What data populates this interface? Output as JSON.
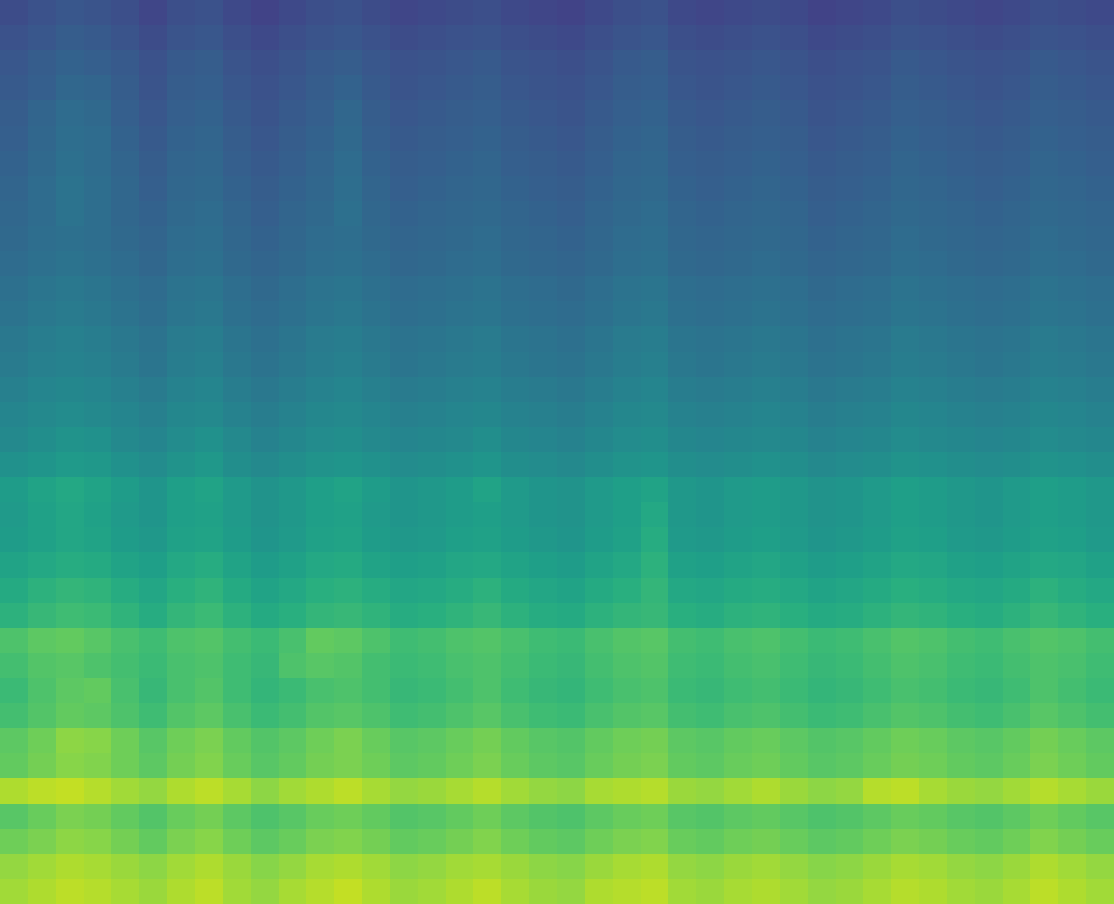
{
  "chart_data": {
    "type": "heatmap",
    "color": "Viridis",
    "tick_labels": false,
    "zlim": [
      0,
      100
    ],
    "cells": [
      [
        86,
        88,
        90,
        89,
        87,
        85,
        88,
        90,
        86,
        84,
        87,
        89,
        91,
        88,
        85,
        86,
        88,
        90,
        87,
        85,
        84,
        88,
        89,
        90,
        86,
        85,
        87,
        88,
        86,
        84,
        85,
        87,
        89,
        88,
        86,
        85,
        87,
        90,
        88,
        86
      ],
      [
        84,
        86,
        88,
        87,
        85,
        83,
        86,
        88,
        85,
        82,
        84,
        87,
        88,
        86,
        83,
        84,
        86,
        87,
        85,
        83,
        82,
        85,
        87,
        88,
        84,
        83,
        85,
        86,
        84,
        82,
        83,
        85,
        87,
        86,
        84,
        83,
        85,
        88,
        86,
        84
      ],
      [
        78,
        80,
        83,
        82,
        79,
        76,
        80,
        82,
        78,
        75,
        77,
        80,
        81,
        79,
        76,
        77,
        79,
        81,
        78,
        76,
        75,
        78,
        80,
        81,
        77,
        76,
        78,
        79,
        77,
        75,
        76,
        78,
        80,
        79,
        77,
        76,
        78,
        81,
        79,
        77
      ],
      [
        74,
        77,
        80,
        79,
        76,
        73,
        77,
        79,
        75,
        72,
        74,
        77,
        78,
        76,
        73,
        74,
        76,
        78,
        75,
        73,
        72,
        75,
        77,
        78,
        74,
        73,
        75,
        76,
        74,
        72,
        73,
        75,
        77,
        76,
        74,
        73,
        75,
        78,
        76,
        74
      ],
      [
        88,
        90,
        91,
        89,
        86,
        84,
        88,
        90,
        87,
        83,
        86,
        88,
        90,
        87,
        84,
        85,
        87,
        89,
        86,
        84,
        83,
        87,
        88,
        89,
        85,
        84,
        86,
        88,
        85,
        83,
        84,
        89,
        90,
        87,
        85,
        84,
        86,
        89,
        87,
        85
      ],
      [
        76,
        79,
        82,
        81,
        78,
        75,
        79,
        81,
        77,
        74,
        76,
        79,
        80,
        78,
        75,
        76,
        78,
        80,
        77,
        75,
        74,
        77,
        79,
        80,
        76,
        75,
        77,
        78,
        76,
        74,
        75,
        77,
        79,
        78,
        76,
        75,
        77,
        80,
        78,
        76
      ],
      [
        75,
        78,
        83,
        82,
        78,
        74,
        78,
        80,
        76,
        73,
        75,
        78,
        80,
        77,
        74,
        75,
        77,
        79,
        76,
        74,
        73,
        76,
        78,
        79,
        75,
        74,
        76,
        77,
        75,
        73,
        74,
        76,
        78,
        77,
        75,
        74,
        76,
        79,
        77,
        75
      ],
      [
        70,
        73,
        76,
        75,
        72,
        69,
        73,
        75,
        71,
        68,
        70,
        73,
        74,
        72,
        69,
        70,
        72,
        74,
        71,
        69,
        68,
        71,
        73,
        74,
        70,
        69,
        71,
        72,
        70,
        68,
        69,
        71,
        73,
        72,
        70,
        69,
        71,
        74,
        72,
        70
      ],
      [
        68,
        72,
        75,
        76,
        71,
        67,
        71,
        73,
        69,
        66,
        68,
        71,
        72,
        70,
        67,
        68,
        70,
        72,
        69,
        67,
        66,
        69,
        71,
        72,
        68,
        67,
        69,
        70,
        68,
        66,
        67,
        69,
        71,
        70,
        68,
        67,
        69,
        72,
        70,
        68
      ],
      [
        70,
        73,
        74,
        72,
        70,
        68,
        71,
        72,
        69,
        67,
        72,
        74,
        73,
        70,
        68,
        69,
        71,
        72,
        70,
        68,
        67,
        70,
        72,
        73,
        69,
        68,
        70,
        71,
        69,
        67,
        68,
        70,
        72,
        71,
        69,
        68,
        70,
        72,
        71,
        69
      ],
      [
        72,
        75,
        76,
        74,
        71,
        69,
        72,
        73,
        70,
        68,
        71,
        76,
        75,
        72,
        69,
        70,
        72,
        73,
        71,
        69,
        68,
        71,
        73,
        74,
        70,
        69,
        71,
        72,
        70,
        68,
        69,
        71,
        73,
        72,
        70,
        69,
        71,
        73,
        72,
        70
      ],
      [
        64,
        67,
        69,
        68,
        65,
        62,
        66,
        68,
        64,
        61,
        63,
        66,
        67,
        65,
        62,
        63,
        65,
        67,
        64,
        62,
        61,
        64,
        66,
        67,
        63,
        62,
        64,
        65,
        63,
        61,
        62,
        64,
        66,
        65,
        63,
        62,
        64,
        67,
        65,
        63
      ],
      [
        61,
        64,
        66,
        65,
        62,
        59,
        63,
        65,
        61,
        58,
        60,
        63,
        64,
        62,
        59,
        60,
        62,
        64,
        61,
        59,
        58,
        61,
        63,
        66,
        60,
        59,
        61,
        62,
        60,
        58,
        59,
        61,
        63,
        62,
        60,
        59,
        61,
        64,
        62,
        60
      ],
      [
        58,
        60,
        62,
        61,
        58,
        56,
        60,
        62,
        58,
        55,
        57,
        60,
        61,
        58,
        56,
        57,
        59,
        60,
        58,
        56,
        55,
        58,
        60,
        64,
        57,
        56,
        58,
        59,
        57,
        55,
        56,
        58,
        60,
        59,
        57,
        56,
        58,
        60,
        59,
        57
      ],
      [
        55,
        57,
        59,
        58,
        55,
        53,
        57,
        58,
        55,
        52,
        54,
        57,
        58,
        55,
        53,
        54,
        56,
        57,
        55,
        53,
        52,
        55,
        57,
        62,
        54,
        53,
        55,
        56,
        54,
        52,
        53,
        55,
        57,
        56,
        54,
        53,
        55,
        57,
        56,
        54
      ],
      [
        54,
        57,
        59,
        57,
        54,
        52,
        56,
        57,
        54,
        51,
        53,
        56,
        57,
        54,
        52,
        53,
        55,
        56,
        54,
        52,
        51,
        54,
        56,
        60,
        53,
        52,
        54,
        55,
        53,
        51,
        52,
        54,
        56,
        55,
        53,
        52,
        54,
        56,
        55,
        53
      ],
      [
        55,
        58,
        60,
        58,
        55,
        52,
        56,
        58,
        54,
        51,
        53,
        56,
        58,
        55,
        52,
        53,
        55,
        58,
        54,
        52,
        51,
        54,
        56,
        58,
        53,
        52,
        54,
        55,
        53,
        51,
        52,
        54,
        56,
        55,
        53,
        52,
        54,
        56,
        55,
        53
      ],
      [
        50,
        52,
        54,
        53,
        50,
        48,
        51,
        53,
        49,
        47,
        49,
        51,
        52,
        50,
        48,
        49,
        50,
        52,
        49,
        48,
        47,
        49,
        51,
        52,
        49,
        48,
        49,
        50,
        49,
        47,
        48,
        49,
        51,
        50,
        49,
        48,
        49,
        51,
        50,
        49
      ],
      [
        47,
        49,
        51,
        50,
        47,
        45,
        48,
        50,
        47,
        44,
        46,
        48,
        49,
        47,
        45,
        46,
        47,
        49,
        46,
        45,
        44,
        46,
        48,
        49,
        46,
        45,
        46,
        47,
        46,
        44,
        45,
        46,
        48,
        47,
        46,
        45,
        46,
        48,
        47,
        46
      ],
      [
        45,
        47,
        48,
        47,
        45,
        43,
        46,
        47,
        44,
        42,
        44,
        46,
        47,
        45,
        43,
        44,
        45,
        46,
        44,
        43,
        42,
        44,
        46,
        47,
        44,
        43,
        44,
        45,
        44,
        42,
        43,
        44,
        46,
        45,
        44,
        43,
        44,
        46,
        45,
        44
      ],
      [
        43,
        45,
        46,
        45,
        43,
        41,
        44,
        45,
        42,
        40,
        42,
        44,
        45,
        43,
        41,
        42,
        43,
        44,
        42,
        41,
        40,
        42,
        44,
        45,
        42,
        41,
        42,
        43,
        42,
        40,
        41,
        42,
        44,
        43,
        42,
        41,
        42,
        44,
        43,
        42
      ],
      [
        41,
        43,
        44,
        43,
        41,
        39,
        42,
        43,
        40,
        38,
        40,
        42,
        43,
        41,
        39,
        40,
        41,
        42,
        40,
        39,
        38,
        40,
        42,
        43,
        40,
        39,
        40,
        41,
        40,
        38,
        39,
        40,
        42,
        41,
        40,
        39,
        40,
        42,
        41,
        40
      ],
      [
        40,
        42,
        43,
        42,
        40,
        38,
        41,
        42,
        39,
        37,
        39,
        41,
        42,
        40,
        38,
        39,
        40,
        41,
        39,
        38,
        37,
        39,
        41,
        42,
        39,
        38,
        39,
        40,
        39,
        37,
        38,
        39,
        41,
        40,
        39,
        38,
        39,
        41,
        40,
        39
      ],
      [
        38,
        40,
        41,
        40,
        38,
        36,
        39,
        40,
        37,
        35,
        37,
        39,
        40,
        38,
        36,
        37,
        38,
        39,
        37,
        36,
        35,
        37,
        39,
        40,
        37,
        36,
        37,
        38,
        37,
        35,
        36,
        37,
        39,
        38,
        37,
        36,
        37,
        39,
        38,
        37
      ],
      [
        37,
        39,
        40,
        39,
        37,
        35,
        38,
        39,
        36,
        34,
        36,
        38,
        39,
        37,
        35,
        36,
        37,
        38,
        36,
        35,
        34,
        36,
        38,
        39,
        36,
        35,
        36,
        37,
        36,
        34,
        35,
        36,
        38,
        37,
        36,
        35,
        36,
        38,
        37,
        36
      ],
      [
        35,
        37,
        38,
        37,
        35,
        33,
        36,
        37,
        34,
        32,
        34,
        36,
        37,
        35,
        33,
        34,
        35,
        36,
        34,
        33,
        32,
        34,
        36,
        37,
        34,
        33,
        34,
        35,
        34,
        32,
        33,
        34,
        36,
        35,
        34,
        33,
        34,
        36,
        35,
        34
      ],
      [
        34,
        36,
        37,
        36,
        34,
        32,
        35,
        36,
        33,
        31,
        33,
        35,
        36,
        34,
        32,
        33,
        34,
        35,
        33,
        32,
        31,
        33,
        35,
        36,
        33,
        32,
        33,
        34,
        33,
        31,
        32,
        33,
        35,
        34,
        33,
        32,
        33,
        35,
        34,
        33
      ],
      [
        33,
        35,
        38,
        36,
        33,
        31,
        34,
        35,
        32,
        30,
        32,
        34,
        37,
        33,
        31,
        32,
        33,
        34,
        32,
        31,
        30,
        32,
        34,
        35,
        32,
        31,
        32,
        33,
        32,
        30,
        31,
        32,
        34,
        33,
        32,
        31,
        32,
        34,
        33,
        32
      ],
      [
        32,
        35,
        38,
        36,
        33,
        30,
        33,
        34,
        31,
        29,
        31,
        33,
        36,
        32,
        30,
        31,
        32,
        33,
        31,
        30,
        29,
        31,
        33,
        34,
        31,
        30,
        31,
        32,
        31,
        29,
        30,
        31,
        33,
        32,
        31,
        30,
        31,
        33,
        32,
        31
      ],
      [
        31,
        34,
        37,
        35,
        32,
        29,
        32,
        33,
        30,
        28,
        30,
        32,
        35,
        31,
        29,
        30,
        31,
        32,
        30,
        29,
        28,
        30,
        32,
        33,
        30,
        29,
        30,
        31,
        30,
        28,
        29,
        30,
        32,
        31,
        30,
        29,
        30,
        32,
        31,
        30
      ],
      [
        30,
        33,
        36,
        35,
        31,
        28,
        31,
        32,
        29,
        27,
        29,
        31,
        34,
        30,
        28,
        29,
        30,
        31,
        29,
        28,
        27,
        29,
        31,
        32,
        29,
        28,
        29,
        30,
        29,
        27,
        28,
        29,
        31,
        30,
        29,
        28,
        29,
        31,
        30,
        29
      ],
      [
        29,
        32,
        35,
        34,
        30,
        27,
        30,
        31,
        28,
        26,
        28,
        30,
        33,
        29,
        27,
        28,
        29,
        30,
        28,
        27,
        26,
        28,
        30,
        31,
        28,
        27,
        28,
        29,
        28,
        26,
        27,
        28,
        30,
        29,
        28,
        27,
        28,
        30,
        29,
        28
      ],
      [
        28,
        30,
        33,
        32,
        29,
        26,
        29,
        30,
        27,
        25,
        27,
        29,
        31,
        28,
        26,
        27,
        28,
        29,
        27,
        26,
        25,
        27,
        29,
        30,
        27,
        26,
        27,
        28,
        27,
        25,
        26,
        27,
        29,
        28,
        27,
        26,
        27,
        29,
        28,
        27
      ],
      [
        27,
        29,
        31,
        30,
        28,
        25,
        28,
        29,
        26,
        24,
        26,
        28,
        29,
        27,
        25,
        26,
        27,
        28,
        26,
        25,
        24,
        26,
        28,
        29,
        26,
        25,
        26,
        27,
        26,
        24,
        25,
        26,
        28,
        27,
        26,
        25,
        26,
        28,
        27,
        26
      ],
      [
        25,
        27,
        29,
        28,
        26,
        23,
        26,
        27,
        24,
        22,
        24,
        26,
        27,
        25,
        23,
        24,
        25,
        26,
        24,
        23,
        22,
        24,
        26,
        27,
        24,
        23,
        24,
        25,
        24,
        22,
        23,
        24,
        26,
        25,
        24,
        23,
        24,
        26,
        25,
        24
      ],
      [
        23,
        25,
        27,
        26,
        24,
        21,
        24,
        25,
        22,
        20,
        22,
        24,
        25,
        23,
        21,
        22,
        23,
        24,
        22,
        21,
        20,
        22,
        24,
        25,
        22,
        21,
        22,
        23,
        22,
        20,
        21,
        22,
        24,
        23,
        22,
        21,
        22,
        24,
        23,
        22
      ]
    ]
  }
}
